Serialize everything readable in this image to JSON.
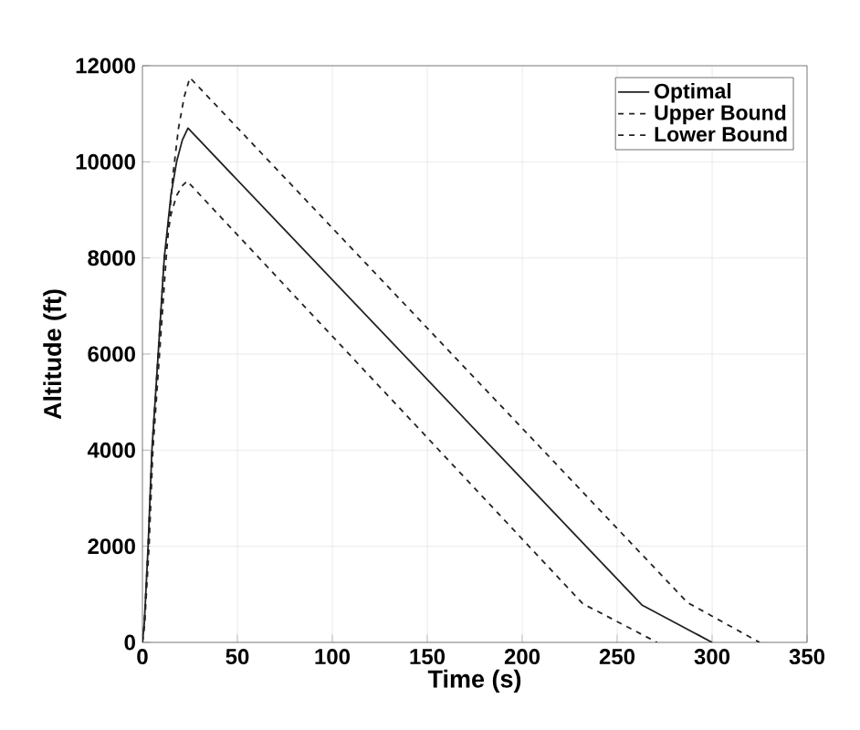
{
  "chart_data": {
    "type": "line",
    "xlabel": "Time (s)",
    "ylabel": "Altitude (ft)",
    "xlim": [
      0,
      350
    ],
    "ylim": [
      0,
      12000
    ],
    "xticks": [
      0,
      50,
      100,
      150,
      200,
      250,
      300,
      350
    ],
    "yticks": [
      0,
      2000,
      4000,
      6000,
      8000,
      10000,
      12000
    ],
    "grid": true,
    "legend": "top right",
    "marker": "none",
    "series": [
      {
        "name": "Optimal",
        "color": "#222222",
        "line_style": "solid",
        "x": [
          0,
          1,
          3,
          5,
          8.3,
          11.5,
          15,
          18,
          21,
          24,
          263,
          300
        ],
        "values": [
          0,
          400,
          2000,
          4000,
          6000,
          8000,
          9300,
          10000,
          10450,
          10700,
          780,
          0
        ]
      },
      {
        "name": "Upper Bound",
        "color": "#222222",
        "line_style": "dashed",
        "x": [
          0,
          1.2,
          3.5,
          5.5,
          9,
          12.5,
          16,
          19,
          22,
          25,
          287,
          325
        ],
        "values": [
          0,
          400,
          2000,
          4000,
          6000,
          8000,
          9700,
          10700,
          11350,
          11750,
          830,
          0
        ]
      },
      {
        "name": "Lower Bound",
        "color": "#222222",
        "line_style": "dashed",
        "x": [
          0,
          1,
          3,
          5,
          8.3,
          11.5,
          15,
          18,
          21,
          23.5,
          232,
          240,
          271
        ],
        "values": [
          0,
          400,
          2000,
          4000,
          6000,
          8000,
          8900,
          9300,
          9500,
          9600,
          800,
          640,
          0
        ]
      }
    ]
  }
}
